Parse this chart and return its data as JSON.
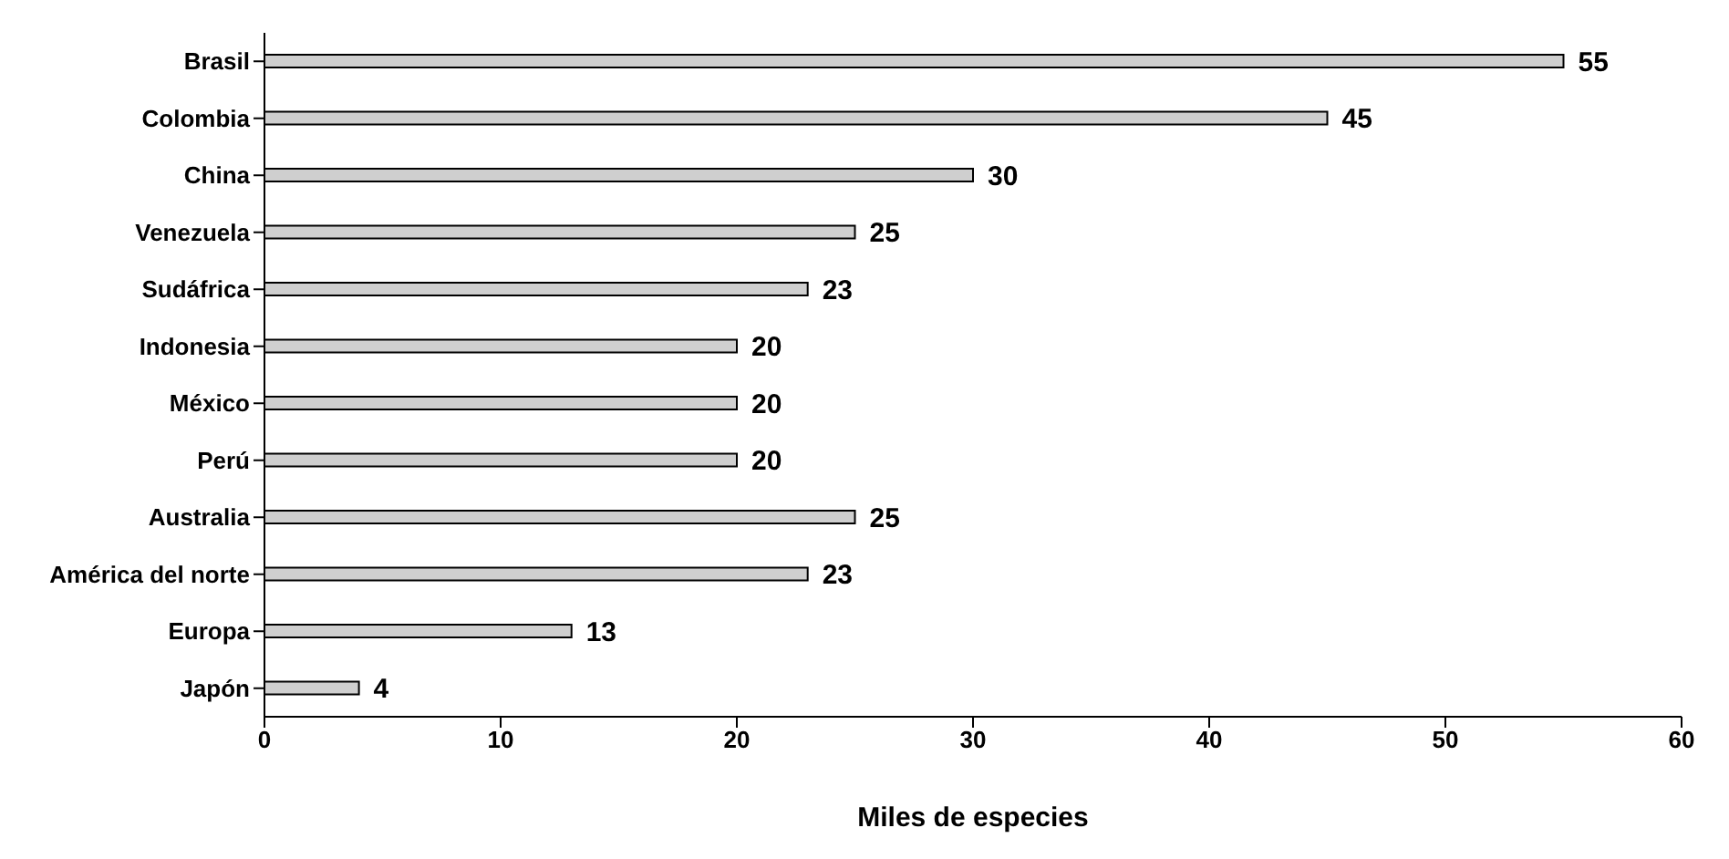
{
  "chart_data": {
    "type": "bar",
    "orientation": "horizontal",
    "xlabel": "Miles de especies",
    "categories": [
      "Brasil",
      "Colombia",
      "China",
      "Venezuela",
      "Sudáfrica",
      "Indonesia",
      "México",
      "Perú",
      "Australia",
      "América del norte",
      "Europa",
      "Japón"
    ],
    "values": [
      55,
      45,
      30,
      25,
      23,
      20,
      20,
      20,
      25,
      23,
      13,
      4
    ],
    "color": "#cfcfcf",
    "xlim": [
      0,
      60
    ],
    "xticks": [
      0,
      10,
      20,
      30,
      40,
      50,
      60
    ],
    "data_labels": true
  }
}
